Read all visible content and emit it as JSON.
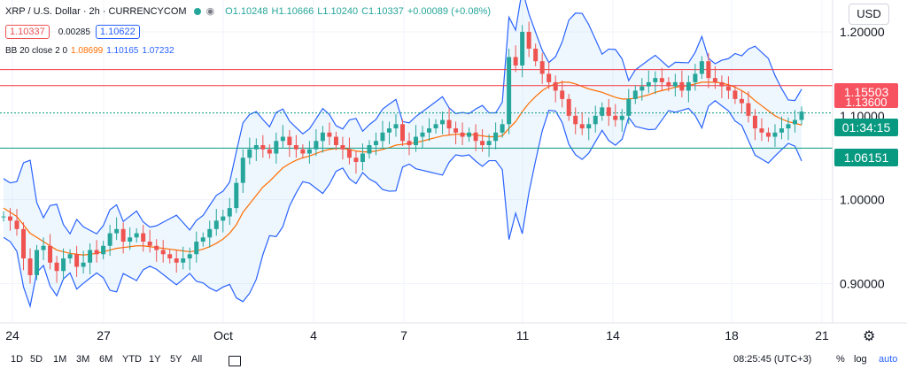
{
  "header": {
    "symbol": "XRP / U.S. Dollar · 2h · CURRENCYCOM",
    "ohlc": {
      "o": "O1.10248",
      "h": "H1.10666",
      "l": "L1.10240",
      "c": "C1.10337",
      "chg": "+0.00089 (+0.08%)"
    },
    "bid": "1.10337",
    "spread": "0.00285",
    "ask": "1.10622",
    "bb_label": "BB 20 close 2 0",
    "bb_basis": "1.08699",
    "bb_upper": "1.10165",
    "bb_lower": "1.07232"
  },
  "currency_button": "USD",
  "price_tags": {
    "red_top": "1.15503",
    "red_under": "1.13600",
    "countdown": "01:34:15",
    "green": "1.06151"
  },
  "timeframes": [
    "1D",
    "5D",
    "1M",
    "3M",
    "6M",
    "YTD",
    "1Y",
    "5Y",
    "All"
  ],
  "clock": "08:25:45 (UTC+3)",
  "scale_opts": {
    "pct": "%",
    "log": "log",
    "auto": "auto"
  },
  "colors": {
    "up": "#26a69a",
    "down": "#ef5350",
    "bb_band": "#2962ff",
    "bb_basis": "#ff6d00",
    "fill": "rgba(33,150,243,0.08)",
    "hline_red": "#f23645",
    "hline_green": "#089981"
  },
  "chart_data": {
    "type": "candlestick",
    "y_ticks": [
      "0.90000",
      "1.00000",
      "1.10000",
      "1.20000"
    ],
    "x_ticks": [
      "24",
      "27",
      "Oct",
      "4",
      "7",
      "11",
      "14",
      "18",
      "21"
    ],
    "ylim": [
      0.853,
      1.238
    ],
    "hlines": [
      1.15503,
      1.136,
      1.10337,
      1.06151
    ],
    "close_series": [
      0.98,
      0.975,
      0.965,
      0.93,
      0.91,
      0.94,
      0.945,
      0.925,
      0.915,
      0.93,
      0.935,
      0.92,
      0.925,
      0.94,
      0.935,
      0.945,
      0.96,
      0.965,
      0.95,
      0.955,
      0.96,
      0.95,
      0.945,
      0.94,
      0.935,
      0.93,
      0.925,
      0.93,
      0.935,
      0.95,
      0.955,
      0.965,
      0.975,
      0.98,
      0.99,
      1.02,
      1.05,
      1.06,
      1.065,
      1.06,
      1.055,
      1.07,
      1.075,
      1.065,
      1.06,
      1.055,
      1.06,
      1.07,
      1.08,
      1.075,
      1.065,
      1.06,
      1.05,
      1.045,
      1.055,
      1.065,
      1.07,
      1.08,
      1.085,
      1.09,
      1.07,
      1.065,
      1.075,
      1.08,
      1.085,
      1.09,
      1.095,
      1.085,
      1.08,
      1.075,
      1.08,
      1.07,
      1.065,
      1.07,
      1.08,
      1.09,
      1.17,
      1.16,
      1.2,
      1.18,
      1.165,
      1.15,
      1.14,
      1.13,
      1.12,
      1.1,
      1.09,
      1.085,
      1.09,
      1.1,
      1.11,
      1.1,
      1.095,
      1.1,
      1.12,
      1.13,
      1.135,
      1.14,
      1.145,
      1.14,
      1.135,
      1.14,
      1.13,
      1.14,
      1.15,
      1.165,
      1.145,
      1.14,
      1.135,
      1.13,
      1.12,
      1.115,
      1.1,
      1.085,
      1.08,
      1.075,
      1.08,
      1.085,
      1.09,
      1.095,
      1.105
    ],
    "bb_basis_series": [
      0.99,
      0.985,
      0.98,
      0.97,
      0.96,
      0.955,
      0.95,
      0.945,
      0.94,
      0.938,
      0.936,
      0.935,
      0.934,
      0.935,
      0.936,
      0.938,
      0.94,
      0.942,
      0.943,
      0.944,
      0.945,
      0.945,
      0.944,
      0.943,
      0.942,
      0.941,
      0.94,
      0.939,
      0.938,
      0.939,
      0.941,
      0.944,
      0.948,
      0.953,
      0.96,
      0.97,
      0.985,
      0.995,
      1.005,
      1.015,
      1.022,
      1.03,
      1.038,
      1.043,
      1.047,
      1.05,
      1.052,
      1.055,
      1.058,
      1.06,
      1.061,
      1.061,
      1.06,
      1.058,
      1.057,
      1.057,
      1.058,
      1.06,
      1.062,
      1.065,
      1.066,
      1.067,
      1.068,
      1.07,
      1.072,
      1.074,
      1.076,
      1.077,
      1.078,
      1.078,
      1.078,
      1.077,
      1.076,
      1.075,
      1.075,
      1.076,
      1.085,
      1.093,
      1.105,
      1.115,
      1.123,
      1.13,
      1.135,
      1.138,
      1.14,
      1.14,
      1.138,
      1.135,
      1.132,
      1.13,
      1.128,
      1.125,
      1.122,
      1.12,
      1.12,
      1.121,
      1.123,
      1.125,
      1.128,
      1.13,
      1.132,
      1.134,
      1.135,
      1.136,
      1.138,
      1.14,
      1.14,
      1.14,
      1.139,
      1.137,
      1.134,
      1.13,
      1.125,
      1.118,
      1.112,
      1.106,
      1.1,
      1.096,
      1.093,
      1.091,
      1.089
    ]
  }
}
